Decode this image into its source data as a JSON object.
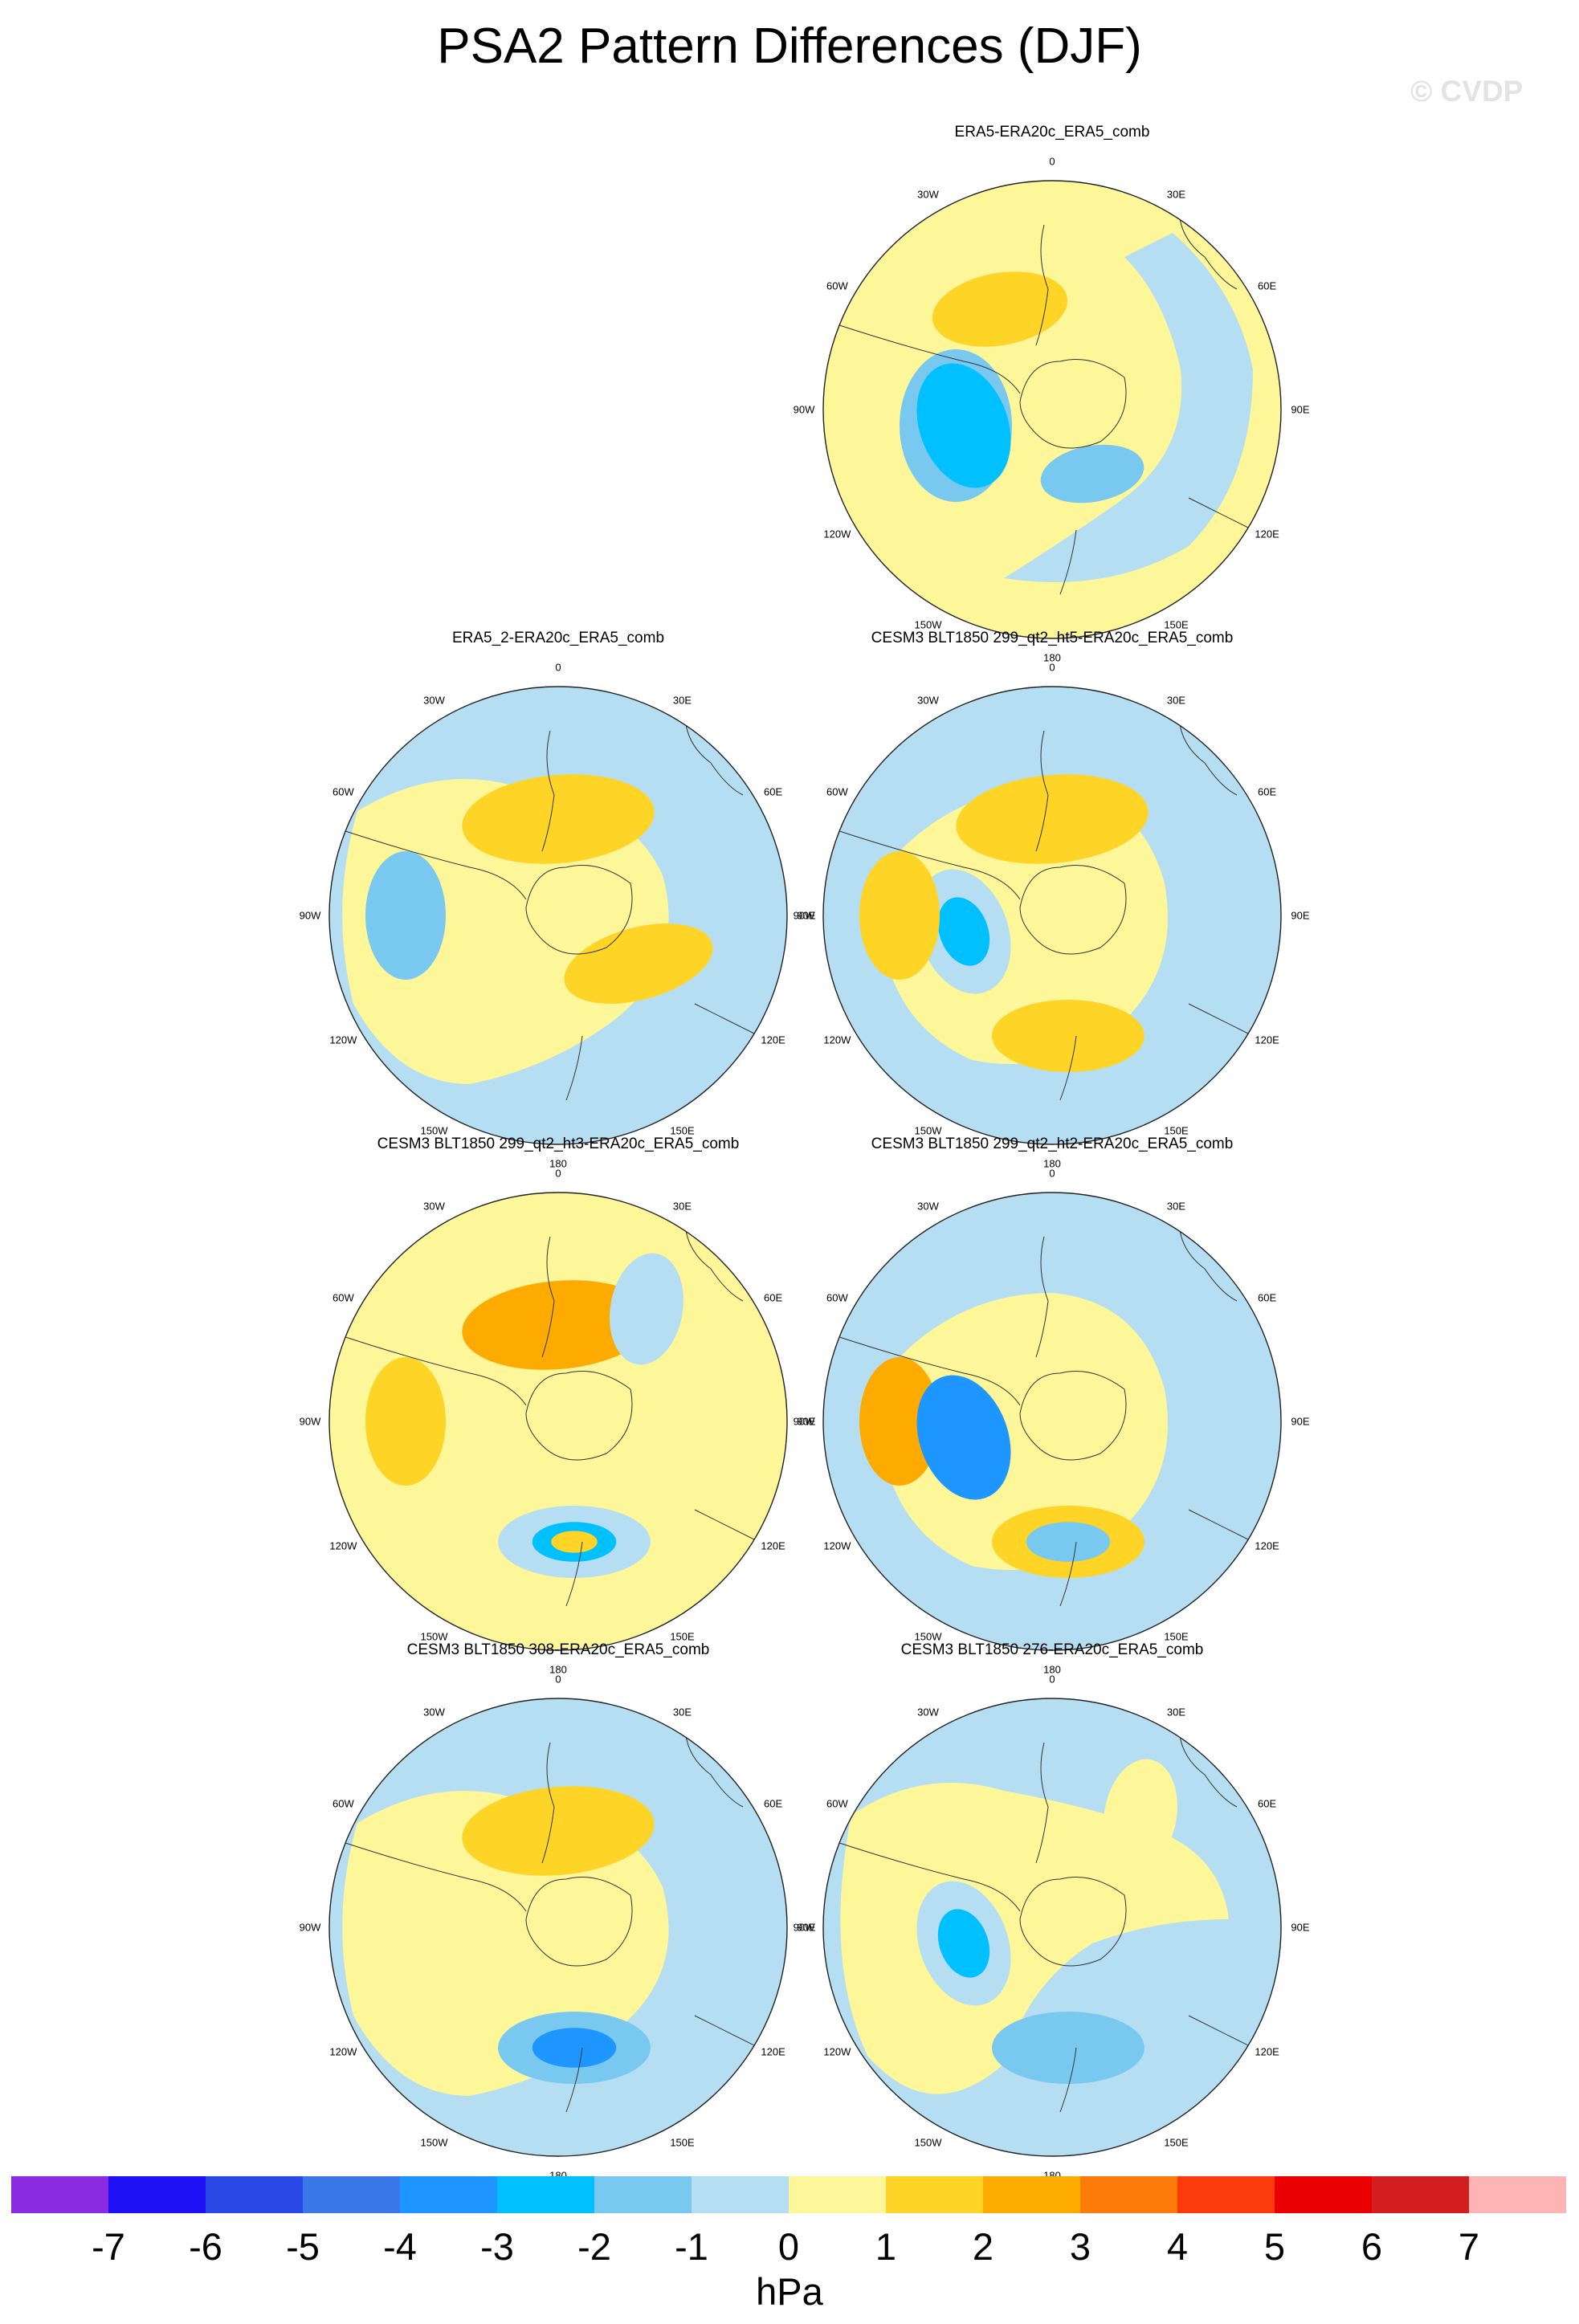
{
  "title": "PSA2 Pattern Differences (DJF)",
  "watermark": "© CVDP",
  "units": "hPa",
  "lon_labels": [
    "0",
    "30E",
    "60E",
    "90E",
    "120E",
    "150E",
    "180",
    "150W",
    "120W",
    "90W",
    "60W",
    "30W"
  ],
  "colorbar": {
    "colors": [
      "#8a2be2",
      "#1e10f5",
      "#2a48e6",
      "#3a78ea",
      "#1e96ff",
      "#00c0ff",
      "#78c8f0",
      "#b6def2",
      "#fdf79a",
      "#fed427",
      "#fdab00",
      "#fd7b0a",
      "#fc3b0d",
      "#ea0000",
      "#d21e1e",
      "#ffb4b4"
    ],
    "tick_labels": [
      "-7",
      "-6",
      "-5",
      "-4",
      "-3",
      "-2",
      "-1",
      "0",
      "1",
      "2",
      "3",
      "4",
      "5",
      "6",
      "7"
    ]
  },
  "panels": [
    {
      "title": "ERA5-ERA20c_ERA5_comb",
      "base": "yellow",
      "regions": [
        {
          "level": "-1",
          "shape": "blue-band-east"
        },
        {
          "level": "-2",
          "shape": "blob",
          "near": "west-southwest"
        },
        {
          "level": "-3",
          "shape": "blob",
          "near": "southwest"
        },
        {
          "level": "-2",
          "shape": "blob",
          "near": "south-southeast"
        },
        {
          "level": "1",
          "shape": "blob",
          "near": "north-northwest"
        }
      ]
    },
    {
      "title": "ERA5_2-ERA20c_ERA5_comb",
      "base": "blue",
      "regions": [
        {
          "level": "0",
          "shape": "yellow-west-and-center"
        },
        {
          "level": "1",
          "shape": "blob",
          "near": "north"
        },
        {
          "level": "1",
          "shape": "blob",
          "near": "southeast"
        },
        {
          "level": "-2",
          "shape": "blob",
          "near": "west"
        }
      ]
    },
    {
      "title": "CESM3 BLT1850 299_qt2_ht5-ERA20c_ERA5_comb",
      "base": "blue",
      "regions": [
        {
          "level": "0",
          "shape": "yellow-center"
        },
        {
          "level": "1",
          "shape": "blob",
          "near": "north"
        },
        {
          "level": "-1",
          "shape": "blob",
          "near": "southwest"
        },
        {
          "level": "-3",
          "shape": "blob",
          "near": "southwest"
        },
        {
          "level": "1",
          "shape": "blob",
          "near": "south"
        },
        {
          "level": "1",
          "shape": "blob",
          "near": "west"
        }
      ]
    },
    {
      "title": "CESM3 BLT1850 299_qt2_ht3-ERA20c_ERA5_comb",
      "base": "yellow",
      "regions": [
        {
          "level": "2",
          "shape": "blob",
          "near": "north"
        },
        {
          "level": "-1",
          "shape": "blob",
          "near": "south"
        },
        {
          "level": "-3",
          "shape": "blob",
          "near": "south"
        },
        {
          "level": "1",
          "shape": "blob",
          "near": "south"
        },
        {
          "level": "1",
          "shape": "blob",
          "near": "west"
        },
        {
          "level": "-1",
          "shape": "blob",
          "near": "northeast"
        }
      ]
    },
    {
      "title": "CESM3 BLT1850 299_qt2_ht2-ERA20c_ERA5_comb",
      "base": "blue",
      "regions": [
        {
          "level": "0",
          "shape": "yellow-center"
        },
        {
          "level": "2",
          "shape": "blob",
          "near": "west"
        },
        {
          "level": "-4",
          "shape": "blob",
          "near": "southwest"
        },
        {
          "level": "1",
          "shape": "blob",
          "near": "south"
        },
        {
          "level": "-2",
          "shape": "blob",
          "near": "south"
        }
      ]
    },
    {
      "title": "CESM3 BLT1850 308-ERA20c_ERA5_comb",
      "base": "blue",
      "regions": [
        {
          "level": "0",
          "shape": "yellow-west-and-center"
        },
        {
          "level": "1",
          "shape": "blob",
          "near": "north"
        },
        {
          "level": "-2",
          "shape": "blob",
          "near": "south"
        },
        {
          "level": "-4",
          "shape": "blob",
          "near": "south"
        }
      ]
    },
    {
      "title": "CESM3 BLT1850 276-ERA20c_ERA5_comb",
      "base": "blue",
      "regions": [
        {
          "level": "0",
          "shape": "yellow-west"
        },
        {
          "level": "-1",
          "shape": "blob",
          "near": "southwest"
        },
        {
          "level": "-3",
          "shape": "blob",
          "near": "southwest"
        },
        {
          "level": "-2",
          "shape": "blob",
          "near": "south"
        },
        {
          "level": "0",
          "shape": "blob",
          "near": "northeast"
        }
      ]
    }
  ]
}
